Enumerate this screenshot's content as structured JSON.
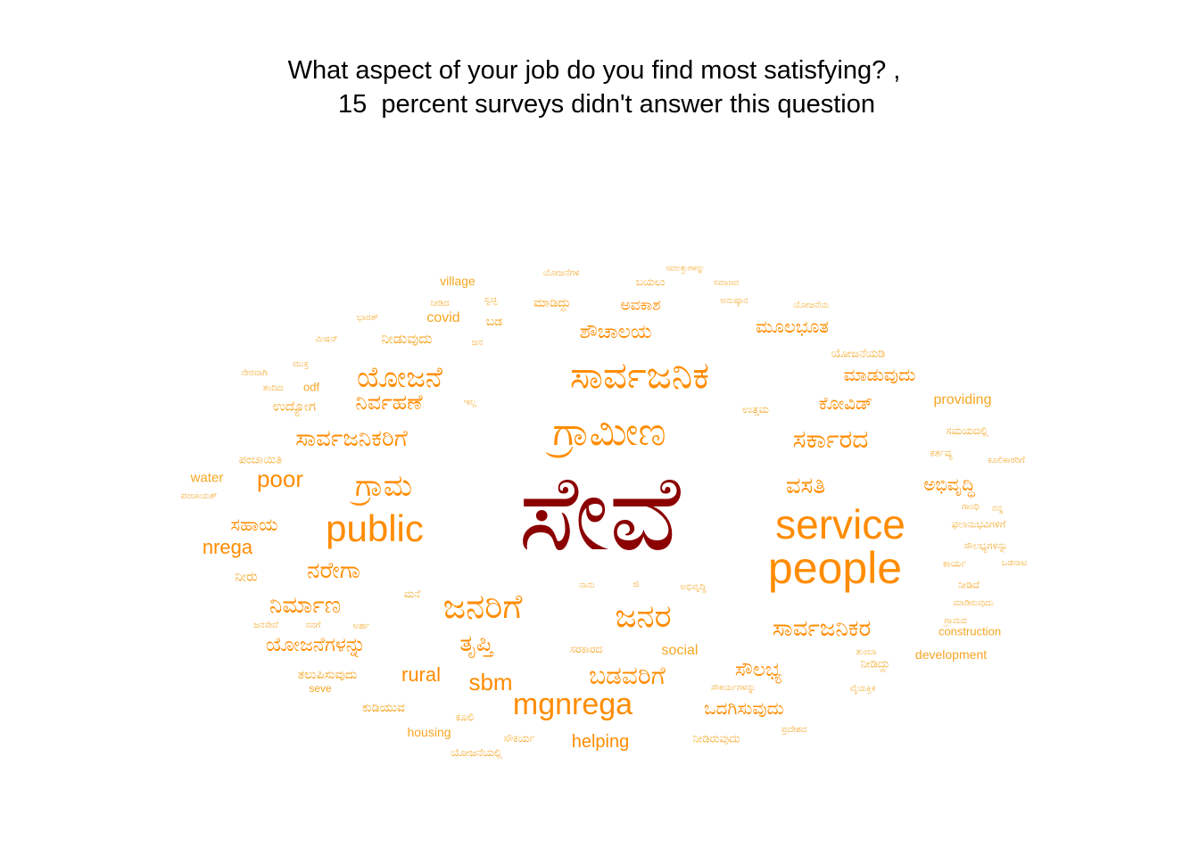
{
  "title": {
    "line1": "What aspect of your job do you find most satisfying? ,",
    "line2": "15  percent surveys didn't answer this question"
  },
  "chart_data": {
    "type": "wordcloud",
    "colors": {
      "top": "#8b0000",
      "high": "#ff8c00",
      "low": "#f5a623"
    },
    "words": [
      {
        "text": "ಸೇವೆ",
        "weight": 100
      },
      {
        "text": "people",
        "weight": 34
      },
      {
        "text": "service",
        "weight": 32
      },
      {
        "text": "ಗ್ರಾಮೀಣ",
        "weight": 30
      },
      {
        "text": "ಸಾರ್ವಜನಿಕ",
        "weight": 30
      },
      {
        "text": "ಜನರಿಗೆ",
        "weight": 29
      },
      {
        "text": "ಜನರ",
        "weight": 28
      },
      {
        "text": "public",
        "weight": 28
      },
      {
        "text": "ಗ್ರಾಮ",
        "weight": 25
      },
      {
        "text": "ಯೋಜನೆ",
        "weight": 24
      },
      {
        "text": "ಸಾರ್ವಜನಿಕರಿಗೆ",
        "weight": 22
      },
      {
        "text": "ಸರ್ಕಾರದ",
        "weight": 22
      },
      {
        "text": "ಸಾರ್ವಜನಿಕರ",
        "weight": 21
      },
      {
        "text": "mgnrega",
        "weight": 21
      },
      {
        "text": "ತೃಪ್ತಿ",
        "weight": 21
      },
      {
        "text": "ಬಡವರಿಗೆ",
        "weight": 21
      },
      {
        "text": "ವಸತಿ",
        "weight": 21
      },
      {
        "text": "ನಿರ್ಮಾಣ",
        "weight": 20
      },
      {
        "text": "ನಿರ್ವಹಣೆ",
        "weight": 19
      },
      {
        "text": "ನರೇಗಾ",
        "weight": 18
      },
      {
        "text": "ಯೋಜನೆಗಳನ್ನು",
        "weight": 18
      },
      {
        "text": "ಸೌಲಭ್ಯ",
        "weight": 18
      },
      {
        "text": "sbm",
        "weight": 18
      },
      {
        "text": "ಒದಗಿಸುವುದು",
        "weight": 17
      },
      {
        "text": "ಶೌಚಾಲಯ",
        "weight": 17
      },
      {
        "text": "ಮೂಲಭೂತ",
        "weight": 17
      },
      {
        "text": "poor",
        "weight": 17
      },
      {
        "text": "ಅಭಿವೃದ್ಧಿ",
        "weight": 16
      },
      {
        "text": "rural",
        "weight": 16
      },
      {
        "text": "ಕೋವಿಡ್",
        "weight": 16
      },
      {
        "text": "ಮಾಡುವುದು",
        "weight": 16
      },
      {
        "text": "ಸಹಾಯ",
        "weight": 15
      },
      {
        "text": "nrega",
        "weight": 15
      },
      {
        "text": "helping",
        "weight": 14
      },
      {
        "text": "ಅವಕಾಶ",
        "weight": 14
      },
      {
        "text": "ಉದ್ಯೋಗ",
        "weight": 13
      },
      {
        "text": "ಯೋಜನೆಯಡಿ",
        "weight": 13
      },
      {
        "text": "ನೀಡುವುದು",
        "weight": 13
      },
      {
        "text": "ತಲುಪಿಸುವುದು",
        "weight": 12
      },
      {
        "text": "ಕುಡಿಯುವ",
        "weight": 12
      },
      {
        "text": "ನೀಡಿರುವುದು",
        "weight": 12
      },
      {
        "text": "ಮಾಡಿದ್ದು",
        "weight": 12
      },
      {
        "text": "ನೀರು",
        "weight": 12
      },
      {
        "text": "ಬಡ",
        "weight": 12
      },
      {
        "text": "ಪಂಚಾಯಿತಿ",
        "weight": 11
      },
      {
        "text": "ನೀಡಿದ್ದು",
        "weight": 11
      },
      {
        "text": "social",
        "weight": 11
      },
      {
        "text": "covid",
        "weight": 11
      },
      {
        "text": "providing",
        "weight": 11
      },
      {
        "text": "ಮನೆ",
        "weight": 10
      },
      {
        "text": "ಬಯಲು",
        "weight": 10
      },
      {
        "text": "ಸಮಯದಲ್ಲಿ",
        "weight": 10
      },
      {
        "text": "ಕರ್ತವ್ಯ",
        "weight": 10
      },
      {
        "text": "ಫಲಾನುಭವಿಗಳಿಗೆ",
        "weight": 10
      },
      {
        "text": "ಸೌಲಭ್ಯಗಳನ್ನು",
        "weight": 10
      },
      {
        "text": "ಕಾರ್ಯ",
        "weight": 10
      },
      {
        "text": "ನೀಡಿದೆ",
        "weight": 10
      },
      {
        "text": "ಸರಕಾರದ",
        "weight": 10
      },
      {
        "text": "ಉತ್ತಮ",
        "weight": 10
      },
      {
        "text": "ಸೌಕರ್ಯ",
        "weight": 10
      },
      {
        "text": "ಯೋಜನೆಯಲ್ಲಿ",
        "weight": 10
      },
      {
        "text": "ಕೂಲಿ",
        "weight": 10
      },
      {
        "text": "water",
        "weight": 10
      },
      {
        "text": "odf",
        "weight": 10
      },
      {
        "text": "village",
        "weight": 10
      },
      {
        "text": "housing",
        "weight": 10
      },
      {
        "text": "development",
        "weight": 10
      },
      {
        "text": "construction",
        "weight": 10
      },
      {
        "text": "ಮುಕ್ತ",
        "weight": 9
      },
      {
        "text": "ಭಾರತ್",
        "weight": 9
      },
      {
        "text": "ಮಿಷನ್",
        "weight": 9
      },
      {
        "text": "ಜನ",
        "weight": 9
      },
      {
        "text": "ನೇರವಾಗಿ",
        "weight": 9
      },
      {
        "text": "ತಂದಿದ",
        "weight": 9
      },
      {
        "text": "ಪಂಚಾಯತ್",
        "weight": 9
      },
      {
        "text": "ಯೋಜನೆಗಳ",
        "weight": 9
      },
      {
        "text": "ಸವಲತ್ತುಗಳನ್ನು",
        "weight": 9
      },
      {
        "text": "ಸಮಾಜದ",
        "weight": 9
      },
      {
        "text": "ಅನುಷ್ಠಾನ",
        "weight": 9
      },
      {
        "text": "ಯೋಜನೆಯ",
        "weight": 9
      },
      {
        "text": "ನೀಡಿದ",
        "weight": 9
      },
      {
        "text": "ಸ್ವಚ್ಛ",
        "weight": 9
      },
      {
        "text": "ಇಲ್ಲ",
        "weight": 9
      },
      {
        "text": "ಜನಸೇವೆ",
        "weight": 9
      },
      {
        "text": "ನನಗೆ",
        "weight": 9
      },
      {
        "text": "ಅರ್ಹ",
        "weight": 9
      },
      {
        "text": "ನಾನು",
        "weight": 9
      },
      {
        "text": "ಜಿ",
        "weight": 9
      },
      {
        "text": "ಅಭಿವೃದ್ಧಿ",
        "weight": 9
      },
      {
        "text": "ಸೌಕರ್ಯಗಳನ್ನು",
        "weight": 9
      },
      {
        "text": "ಪ್ರದೇಶದ",
        "weight": 9
      },
      {
        "text": "ವೈಯಕ್ತಿಕ",
        "weight": 9
      },
      {
        "text": "ತುಂಬಾ",
        "weight": 9
      },
      {
        "text": "ಗ್ರಾಮದ",
        "weight": 9
      },
      {
        "text": "ಮಾಡಿರುವುದು",
        "weight": 9
      },
      {
        "text": "ಒಡನಾಟ",
        "weight": 9
      },
      {
        "text": "ಗಾಂಧಿ",
        "weight": 9
      },
      {
        "text": "ನನ್ನ",
        "weight": 9
      },
      {
        "text": "ಕೂಲಿಕಾರರಿಗೆ",
        "weight": 9
      },
      {
        "text": "seve",
        "weight": 9
      }
    ]
  }
}
